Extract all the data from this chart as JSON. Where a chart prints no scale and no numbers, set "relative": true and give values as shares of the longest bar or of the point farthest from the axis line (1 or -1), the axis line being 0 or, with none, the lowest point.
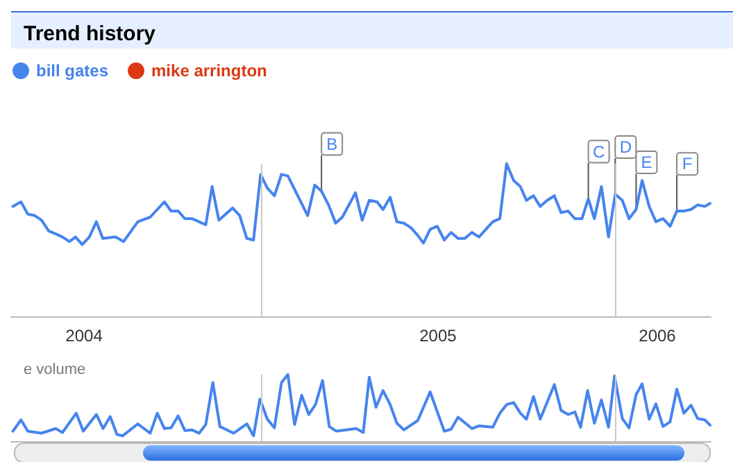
{
  "chart_data": [
    {
      "type": "line",
      "title": "Trend history",
      "relative": true,
      "legend": "top left",
      "tick_labels": "x",
      "xlim": [
        2004.294,
        2006.271
      ],
      "xticks": [
        {
          "value": 2004.5,
          "label": "2004"
        },
        {
          "value": 2005.5,
          "label": "2005"
        },
        {
          "value": 2006.12,
          "label": "2006"
        }
      ],
      "ref_lines": [
        {
          "axis": "x",
          "value": 2005,
          "color": "#c8c8c8"
        },
        {
          "axis": "x",
          "value": 2006,
          "color": "#c8c8c8"
        }
      ],
      "annotations": [
        {
          "text": "B",
          "x": 2005.171,
          "y": 0.82
        },
        {
          "text": "C",
          "x": 2005.925,
          "y": 0.77
        },
        {
          "text": "D",
          "x": 2006.001,
          "y": 0.8
        },
        {
          "text": "E",
          "x": 2006.06,
          "y": 0.7
        },
        {
          "text": "F",
          "x": 2006.175,
          "y": 0.69
        }
      ],
      "x": [
        2004.299,
        2004.322,
        2004.341,
        2004.361,
        2004.38,
        2004.4,
        2004.42,
        2004.439,
        2004.459,
        2004.476,
        2004.495,
        2004.515,
        2004.535,
        2004.553,
        2004.589,
        2004.612,
        2004.652,
        2004.687,
        2004.727,
        2004.746,
        2004.766,
        2004.785,
        2004.805,
        2004.825,
        2004.844,
        2004.862,
        2004.881,
        2004.92,
        2004.94,
        2004.96,
        2004.979,
        2004.999,
        2005.018,
        2005.038,
        2005.058,
        2005.076,
        2005.132,
        2005.152,
        2005.171,
        2005.191,
        2005.211,
        2005.23,
        2005.267,
        2005.286,
        2005.306,
        2005.328,
        2005.345,
        2005.365,
        2005.384,
        2005.404,
        2005.424,
        2005.443,
        2005.459,
        2005.478,
        2005.498,
        2005.518,
        2005.537,
        2005.557,
        2005.576,
        2005.596,
        2005.616,
        2005.655,
        2005.675,
        2005.694,
        2005.714,
        2005.733,
        2005.75,
        2005.77,
        2005.789,
        2005.809,
        2005.829,
        2005.848,
        2005.868,
        2005.887,
        2005.907,
        2005.925,
        2005.942,
        2005.962,
        2005.982,
        2006.001,
        2006.021,
        2006.04,
        2006.06,
        2006.077,
        2006.097,
        2006.116,
        2006.136,
        2006.156,
        2006.175,
        2006.195,
        2006.215,
        2006.234,
        2006.254,
        2006.269
      ],
      "series": [
        {
          "name": "bill gates",
          "color": "#4684ee",
          "values": [
            0.72,
            0.75,
            0.67,
            0.66,
            0.63,
            0.56,
            0.54,
            0.52,
            0.49,
            0.52,
            0.47,
            0.52,
            0.62,
            0.51,
            0.52,
            0.49,
            0.62,
            0.65,
            0.75,
            0.69,
            0.69,
            0.64,
            0.64,
            0.62,
            0.6,
            0.85,
            0.63,
            0.71,
            0.66,
            0.51,
            0.5,
            0.93,
            0.84,
            0.79,
            0.93,
            0.92,
            0.66,
            0.86,
            0.82,
            0.73,
            0.61,
            0.65,
            0.81,
            0.63,
            0.76,
            0.75,
            0.7,
            0.78,
            0.62,
            0.61,
            0.58,
            0.53,
            0.48,
            0.57,
            0.59,
            0.5,
            0.55,
            0.51,
            0.51,
            0.55,
            0.52,
            0.62,
            0.64,
            1.0,
            0.89,
            0.85,
            0.76,
            0.79,
            0.72,
            0.76,
            0.79,
            0.68,
            0.69,
            0.64,
            0.64,
            0.77,
            0.64,
            0.85,
            0.52,
            0.8,
            0.76,
            0.64,
            0.7,
            0.89,
            0.72,
            0.62,
            0.64,
            0.59,
            0.69,
            0.69,
            0.7,
            0.73,
            0.72,
            0.74
          ]
        },
        {
          "name": "mike arrington",
          "color": "#dc3912",
          "values": [
            null,
            null,
            null,
            null,
            null,
            null,
            null,
            null,
            null,
            null,
            null,
            null,
            null,
            null,
            null,
            null,
            null,
            null,
            null,
            null,
            null,
            null,
            null,
            null,
            null,
            null,
            null,
            null,
            null,
            null,
            null,
            null,
            null,
            null,
            null,
            null,
            null,
            null,
            null,
            null,
            null,
            null,
            null,
            null,
            null,
            null,
            null,
            null,
            null,
            null,
            null,
            null,
            null,
            null,
            null,
            null,
            null,
            null,
            null,
            null,
            null,
            null,
            null,
            null,
            null,
            null,
            null,
            null,
            null,
            null,
            null,
            null,
            null,
            null,
            null,
            null,
            null,
            null,
            null,
            null,
            null,
            null,
            null,
            null,
            null,
            null,
            null,
            null,
            null,
            null,
            null,
            null,
            null,
            null
          ]
        }
      ]
    },
    {
      "type": "line",
      "title": "e volume",
      "relative": true,
      "tick_labels": false,
      "xlim": [
        2004.294,
        2006.271
      ],
      "ref_lines": [
        {
          "axis": "x",
          "value": 2005,
          "color": "#c8c8c8"
        },
        {
          "axis": "x",
          "value": 2006,
          "color": "#c8c8c8"
        }
      ],
      "x": [
        2004.299,
        2004.322,
        2004.341,
        2004.38,
        2004.42,
        2004.439,
        2004.478,
        2004.498,
        2004.535,
        2004.554,
        2004.574,
        2004.593,
        2004.609,
        2004.652,
        2004.687,
        2004.707,
        2004.727,
        2004.746,
        2004.766,
        2004.785,
        2004.805,
        2004.825,
        2004.844,
        2004.864,
        2004.884,
        2004.923,
        2004.96,
        2004.979,
        2004.997,
        2005.018,
        2005.038,
        2005.058,
        2005.076,
        2005.095,
        2005.115,
        2005.135,
        2005.154,
        2005.174,
        2005.193,
        2005.213,
        2005.269,
        2005.289,
        2005.306,
        2005.325,
        2005.345,
        2005.365,
        2005.384,
        2005.404,
        2005.443,
        2005.478,
        2005.518,
        2005.537,
        2005.557,
        2005.596,
        2005.616,
        2005.655,
        2005.675,
        2005.694,
        2005.714,
        2005.733,
        2005.75,
        2005.77,
        2005.789,
        2005.829,
        2005.848,
        2005.868,
        2005.887,
        2005.903,
        2005.923,
        2005.942,
        2005.962,
        2005.982,
        2005.999,
        2006.021,
        2006.04,
        2006.06,
        2006.077,
        2006.097,
        2006.116,
        2006.136,
        2006.156,
        2006.175,
        2006.195,
        2006.215,
        2006.234,
        2006.254,
        2006.269
      ],
      "series": [
        {
          "color": "#4684ee",
          "values": [
            0.15,
            0.32,
            0.15,
            0.12,
            0.19,
            0.13,
            0.42,
            0.15,
            0.4,
            0.19,
            0.37,
            0.1,
            0.08,
            0.26,
            0.12,
            0.42,
            0.19,
            0.2,
            0.38,
            0.16,
            0.17,
            0.12,
            0.25,
            0.88,
            0.22,
            0.12,
            0.26,
            0.08,
            0.63,
            0.33,
            0.2,
            0.88,
            1.0,
            0.25,
            0.69,
            0.4,
            0.55,
            0.91,
            0.22,
            0.15,
            0.19,
            0.13,
            0.96,
            0.51,
            0.76,
            0.55,
            0.27,
            0.17,
            0.31,
            0.74,
            0.15,
            0.18,
            0.36,
            0.19,
            0.23,
            0.21,
            0.42,
            0.55,
            0.58,
            0.42,
            0.33,
            0.67,
            0.33,
            0.85,
            0.46,
            0.4,
            0.44,
            0.21,
            0.76,
            0.27,
            0.62,
            0.21,
            0.98,
            0.34,
            0.2,
            0.7,
            0.86,
            0.33,
            0.56,
            0.22,
            0.29,
            0.78,
            0.42,
            0.54,
            0.34,
            0.32,
            0.24
          ]
        }
      ]
    }
  ]
}
